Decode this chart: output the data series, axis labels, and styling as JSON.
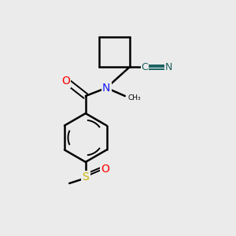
{
  "background_color": "#ebebeb",
  "bond_color": "#000000",
  "atom_colors": {
    "N": "#1919ff",
    "O": "#ff0000",
    "S": "#ccb800",
    "CN_text": "#1a6060"
  },
  "figsize": [
    3.0,
    3.0
  ],
  "dpi": 100
}
